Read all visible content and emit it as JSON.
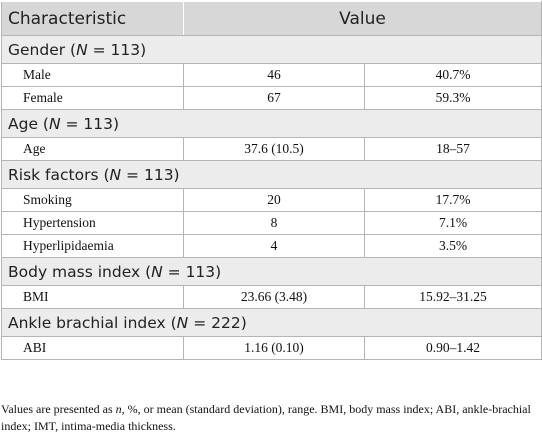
{
  "header": {
    "col1": "Characteristic",
    "col2": "Value"
  },
  "sections": [
    {
      "title_pre": "Gender (",
      "n_symbol": "N",
      "title_post": " = 113)",
      "rows": [
        {
          "label": "Male",
          "v1": "46",
          "v2": "40.7%"
        },
        {
          "label": "Female",
          "v1": "67",
          "v2": "59.3%"
        }
      ]
    },
    {
      "title_pre": "Age (",
      "n_symbol": "N",
      "title_post": " = 113)",
      "rows": [
        {
          "label": "Age",
          "v1": "37.6 (10.5)",
          "v2": "18–57"
        }
      ]
    },
    {
      "title_pre": "Risk factors (",
      "n_symbol": "N",
      "title_post": " = 113)",
      "rows": [
        {
          "label": "Smoking",
          "v1": "20",
          "v2": "17.7%"
        },
        {
          "label": "Hypertension",
          "v1": "8",
          "v2": "7.1%"
        },
        {
          "label": "Hyperlipidaemia",
          "v1": "4",
          "v2": "3.5%"
        }
      ]
    },
    {
      "title_pre": "Body mass index (",
      "n_symbol": "N",
      "title_post": " = 113)",
      "rows": [
        {
          "label": "BMI",
          "v1": "23.66 (3.48)",
          "v2": "15.92–31.25"
        }
      ]
    },
    {
      "title_pre": "Ankle brachial index (",
      "n_symbol": "N",
      "title_post": " = 222)",
      "rows": [
        {
          "label": "ABI",
          "v1": "1.16 (0.10)",
          "v2": "0.90–1.42"
        }
      ]
    }
  ],
  "footnote": {
    "pre": "Values are presented as ",
    "n_italic": "n",
    "post": ", %, or mean (standard deviation), range. BMI, body mass index; ABI, ankle-brachial index; IMT, intima-media thickness."
  }
}
